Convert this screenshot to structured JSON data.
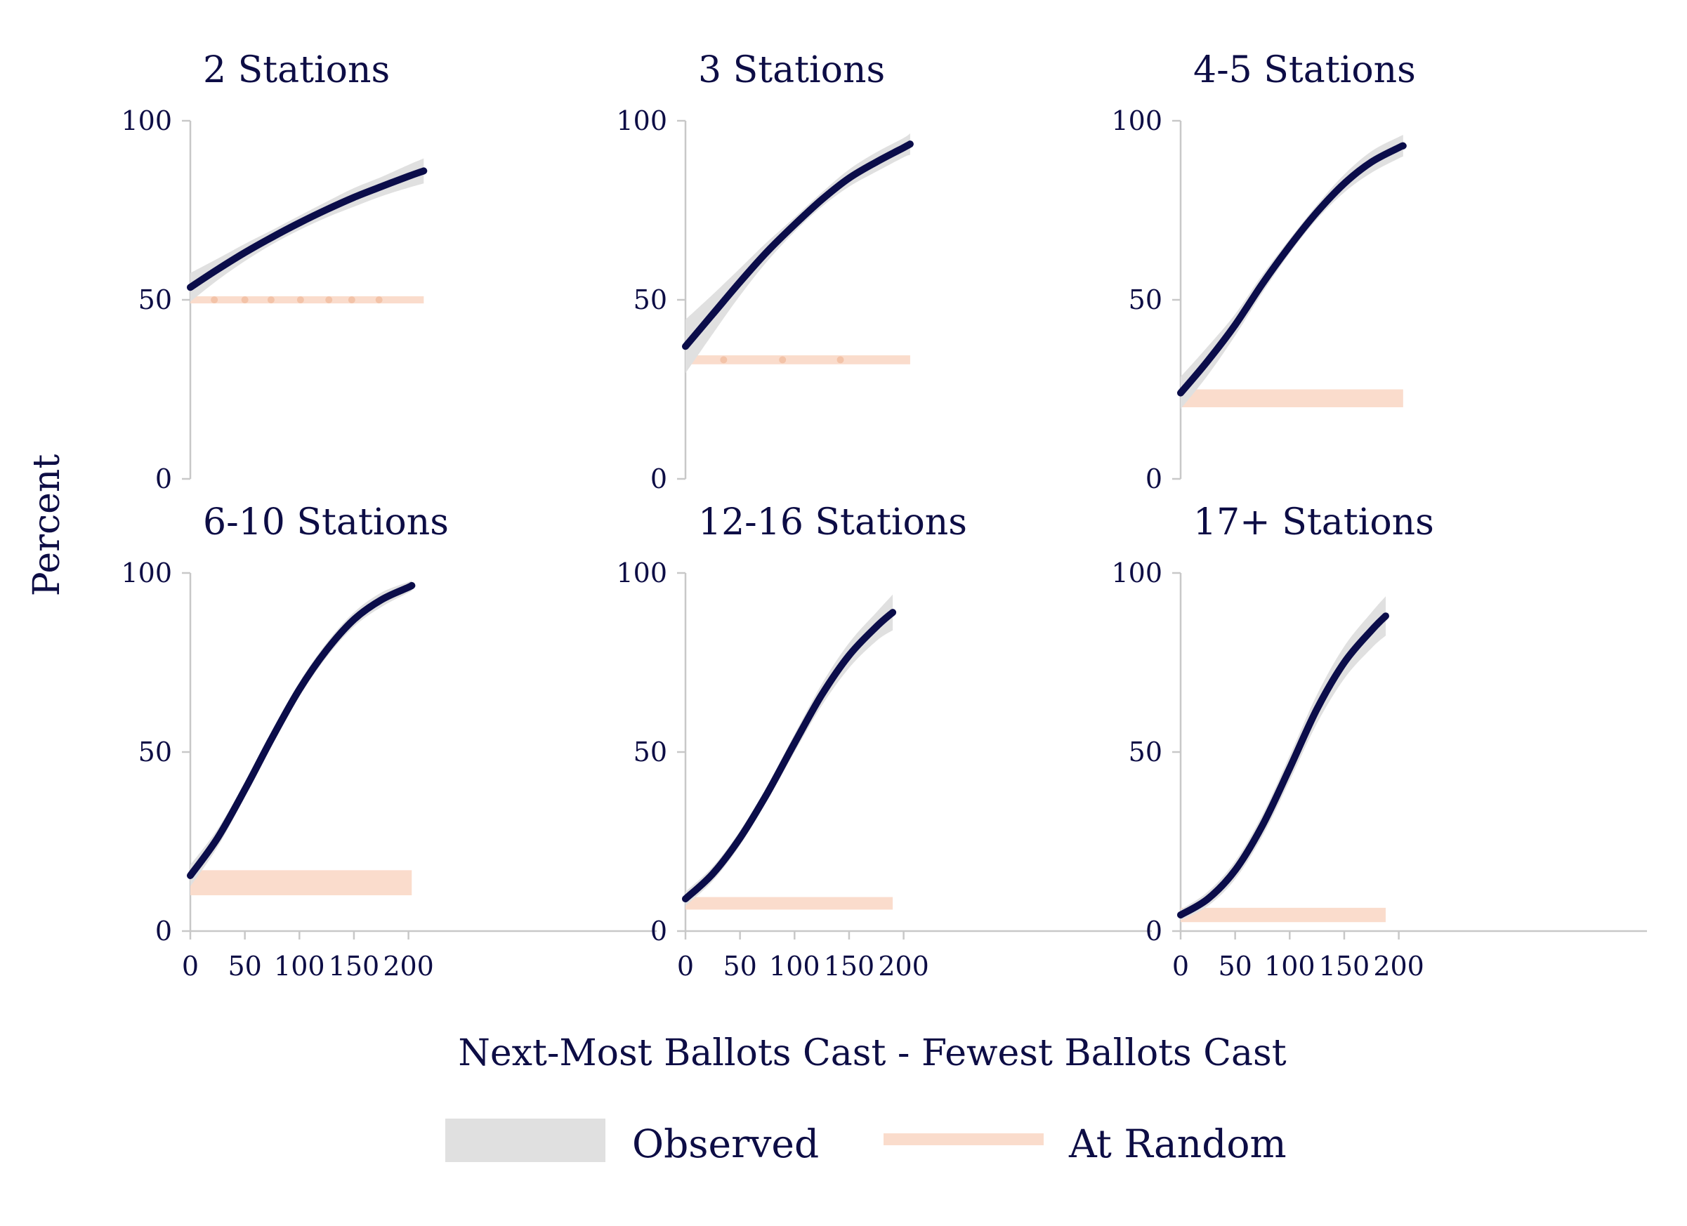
{
  "chart_data": {
    "type": "line",
    "xlabel": "Next-Most Ballots Cast - Fewest Ballots Cast",
    "ylabel": "Percent",
    "xlim": [
      0,
      210
    ],
    "ylim": [
      0,
      100
    ],
    "xticks": [
      0,
      50,
      100,
      150,
      200
    ],
    "yticks": [
      0,
      50,
      100
    ],
    "grid": false,
    "legend": {
      "position": "bottom",
      "items": [
        {
          "label": "Observed",
          "color": "#e0e0e0"
        },
        {
          "label": "At Random",
          "color": "#fadccc"
        }
      ]
    },
    "colors": {
      "observed_line": "#0b0d4a",
      "observed_ci": "#e0e0e0",
      "random_band": "#fadccc",
      "random_dots": "#f3c3a8",
      "axis": "#c8c8c8",
      "text": "#0d0d45"
    },
    "panels": [
      {
        "title": "2 Stations",
        "x": [
          0,
          25,
          50,
          75,
          100,
          125,
          150,
          175,
          200,
          214
        ],
        "observed": [
          53.5,
          58.5,
          63.2,
          67.5,
          71.5,
          75.2,
          78.6,
          81.6,
          84.5,
          86.0
        ],
        "ci_lower": [
          49.5,
          55.5,
          60.8,
          65.5,
          69.5,
          73.0,
          76.0,
          78.9,
          81.3,
          82.5
        ],
        "ci_upper": [
          57.5,
          61.5,
          65.6,
          69.5,
          73.5,
          77.4,
          81.2,
          84.3,
          87.7,
          89.5
        ],
        "random_x": [
          0,
          214
        ],
        "random_lower": [
          49,
          49
        ],
        "random_upper": [
          51,
          51
        ],
        "random_dots": [
          22,
          50,
          74,
          101,
          127,
          148,
          173
        ]
      },
      {
        "title": "3 Stations",
        "x": [
          0,
          25,
          50,
          75,
          100,
          125,
          150,
          175,
          200,
          206
        ],
        "observed": [
          37.0,
          46.0,
          55.0,
          63.5,
          71.0,
          78.0,
          84.0,
          88.5,
          92.5,
          93.5
        ],
        "ci_lower": [
          29.5,
          40.5,
          51.2,
          60.8,
          69.0,
          76.0,
          81.6,
          85.8,
          89.8,
          90.5
        ],
        "ci_upper": [
          44.5,
          51.5,
          58.8,
          66.2,
          73.0,
          80.0,
          86.4,
          91.2,
          95.2,
          96.5
        ],
        "random_x": [
          0,
          206
        ],
        "random_lower": [
          32,
          32
        ],
        "random_upper": [
          34.5,
          34.5
        ],
        "random_dots": [
          35,
          89,
          142
        ]
      },
      {
        "title": "4-5 Stations",
        "x": [
          0,
          25,
          50,
          75,
          100,
          125,
          150,
          175,
          200,
          204
        ],
        "observed": [
          24.0,
          33.0,
          43.0,
          54.5,
          65.0,
          74.5,
          82.5,
          88.5,
          92.5,
          93.0
        ],
        "ci_lower": [
          19.5,
          29.0,
          40.0,
          52.0,
          63.0,
          72.5,
          80.0,
          85.5,
          89.5,
          90.0
        ],
        "ci_upper": [
          28.5,
          37.0,
          46.0,
          57.0,
          67.0,
          76.5,
          85.0,
          91.5,
          95.5,
          96.0
        ],
        "random_x": [
          0,
          204
        ],
        "random_lower": [
          20,
          20
        ],
        "random_upper": [
          25,
          25
        ],
        "random_dots": []
      },
      {
        "title": "6-10 Stations",
        "x": [
          0,
          25,
          50,
          75,
          100,
          125,
          150,
          175,
          200,
          203
        ],
        "observed": [
          15.5,
          26.0,
          39.5,
          54.0,
          67.5,
          78.5,
          87.0,
          92.5,
          96.0,
          96.5
        ],
        "ci_lower": [
          12.5,
          23.5,
          37.5,
          52.0,
          65.5,
          76.5,
          85.0,
          90.5,
          94.5,
          95.0
        ],
        "ci_upper": [
          18.5,
          28.5,
          41.5,
          56.0,
          69.5,
          80.5,
          89.0,
          94.5,
          97.5,
          98.0
        ],
        "random_x": [
          0,
          203
        ],
        "random_lower": [
          10,
          10
        ],
        "random_upper": [
          17,
          17
        ],
        "random_dots": []
      },
      {
        "title": "12-16 Stations",
        "x": [
          0,
          25,
          50,
          75,
          100,
          125,
          150,
          175,
          190
        ],
        "observed": [
          9.0,
          16.0,
          26.0,
          38.5,
          52.5,
          66.0,
          77.0,
          85.0,
          89.0
        ],
        "ci_lower": [
          7.0,
          14.0,
          24.0,
          36.5,
          50.0,
          63.0,
          73.5,
          81.0,
          84.0
        ],
        "ci_upper": [
          11.0,
          18.0,
          28.0,
          40.5,
          55.0,
          69.0,
          80.5,
          89.0,
          94.0
        ],
        "random_x": [
          0,
          190
        ],
        "random_lower": [
          6,
          6
        ],
        "random_upper": [
          9.5,
          9.5
        ],
        "random_dots": []
      },
      {
        "title": "17+ Stations",
        "x": [
          0,
          25,
          50,
          75,
          100,
          125,
          150,
          175,
          188
        ],
        "observed": [
          4.5,
          9.0,
          17.0,
          29.5,
          45.5,
          62.0,
          75.0,
          84.0,
          88.0
        ],
        "ci_lower": [
          3.0,
          7.0,
          14.5,
          26.5,
          42.0,
          58.0,
          70.5,
          79.0,
          82.5
        ],
        "ci_upper": [
          6.0,
          11.0,
          19.5,
          32.5,
          49.0,
          66.0,
          79.5,
          89.0,
          93.5
        ],
        "random_x": [
          0,
          188
        ],
        "random_lower": [
          2.5,
          2.5
        ],
        "random_upper": [
          6.5,
          6.5
        ],
        "random_dots": []
      }
    ]
  }
}
